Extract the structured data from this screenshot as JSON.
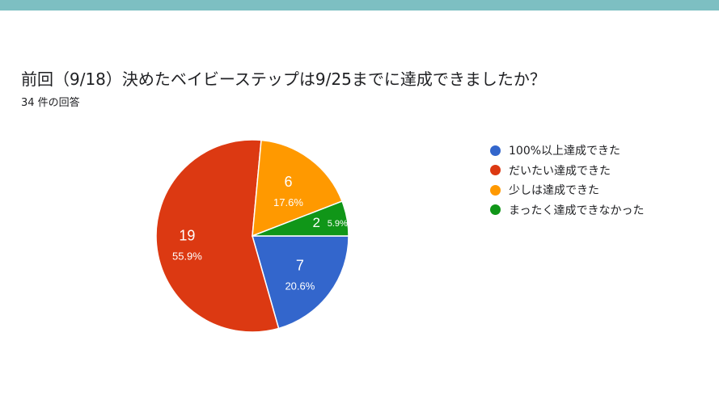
{
  "question": "前回（9/18）決めたベイビーステップは9/25までに達成できましたか？",
  "response_count": "34 件の回答",
  "colors": {
    "header_bar": "#7dbfc2",
    "blue": "#3366cc",
    "red": "#dc3912",
    "orange": "#ff9900",
    "green": "#109618"
  },
  "chart_data": {
    "type": "pie",
    "total": 34,
    "slices": [
      {
        "label": "100%以上達成できた",
        "value": 7,
        "percent": "20.6%",
        "color": "#3366cc"
      },
      {
        "label": "だいたい達成できた",
        "value": 19,
        "percent": "55.9%",
        "color": "#dc3912"
      },
      {
        "label": "少しは達成できた",
        "value": 6,
        "percent": "17.6%",
        "color": "#ff9900"
      },
      {
        "label": "まったく達成できなかった",
        "value": 2,
        "percent": "5.9%",
        "color": "#109618"
      }
    ],
    "legend_position": "right"
  }
}
